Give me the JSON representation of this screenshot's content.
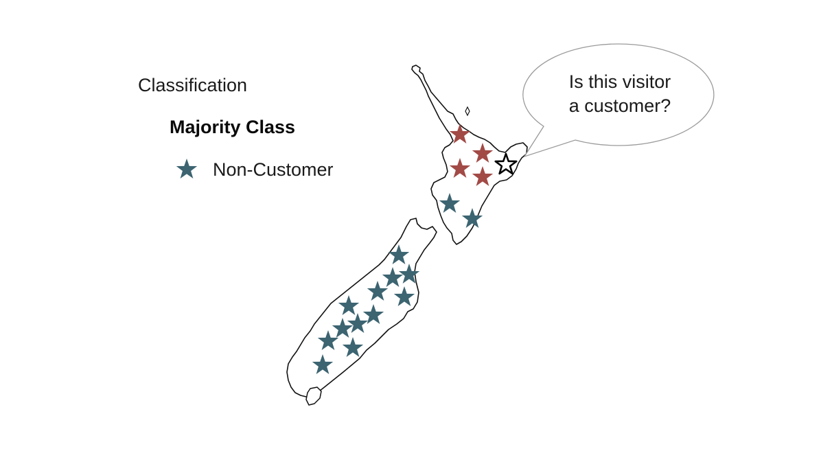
{
  "heading": "Classification",
  "subheading": "Majority Class",
  "legend": {
    "label": "Non-Customer",
    "color": "#3c6471"
  },
  "callout": {
    "line1": "Is this visitor",
    "line2": "a customer?"
  },
  "colors": {
    "customer": "#a24a46",
    "non_customer": "#3c6471",
    "query_outline": "#000000",
    "map_outline": "#111111",
    "bubble_outline": "#9a9a9a"
  }
}
